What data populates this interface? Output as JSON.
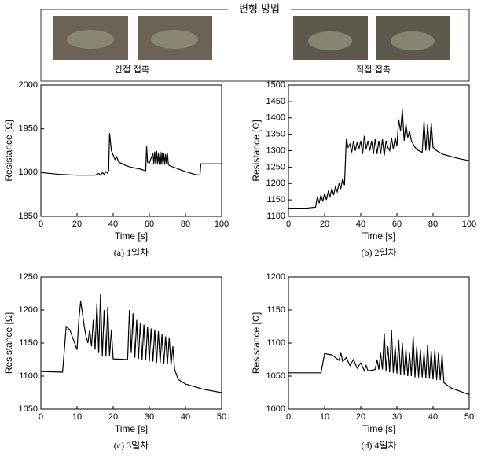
{
  "header": {
    "title": "변형 방법",
    "labels": [
      "간접 접촉",
      "직접 접촉"
    ]
  },
  "chart_data": [
    {
      "type": "line",
      "x_label": "Time [s]",
      "y_label": "Resistance [Ω]",
      "caption": "(a) 1일차",
      "x": [
        0,
        10,
        20,
        30,
        32,
        33,
        34,
        35,
        36,
        37,
        37.5,
        38,
        39,
        40,
        41,
        42,
        43,
        45,
        47,
        50,
        55,
        58,
        58.5,
        59,
        60,
        62,
        62.5,
        63,
        63.5,
        64,
        64.5,
        65,
        65.5,
        66,
        66.5,
        67,
        67.5,
        68,
        68.5,
        69,
        69.5,
        70,
        70.5,
        71,
        75,
        80,
        85,
        88,
        88.5,
        95,
        100
      ],
      "series": [
        {
          "color": "#000000",
          "values": [
            1900,
            1898,
            1897,
            1897,
            1899,
            1897,
            1900,
            1898,
            1901,
            1899,
            1903,
            1945,
            1925,
            1920,
            1915,
            1918,
            1912,
            1910,
            1908,
            1906,
            1904,
            1902,
            1930,
            1912,
            1911,
            1922,
            1910,
            1924,
            1910,
            1925,
            1910,
            1922,
            1909,
            1924,
            1909,
            1923,
            1909,
            1922,
            1909,
            1921,
            1910,
            1922,
            1910,
            1908,
            1905,
            1901,
            1898,
            1897,
            1910,
            1910,
            1910
          ]
        }
      ],
      "xlim": [
        0,
        100
      ],
      "ylim": [
        1850,
        2000
      ],
      "xticks": [
        0,
        20,
        40,
        60,
        80,
        100
      ],
      "yticks": [
        1850,
        1900,
        1950,
        2000
      ]
    },
    {
      "type": "line",
      "x_label": "Time [s]",
      "y_label": "Resistance [Ω]",
      "caption": "(b) 2일차",
      "x": [
        0,
        10,
        15,
        16,
        17,
        18,
        19,
        20,
        21,
        22,
        23,
        24,
        25,
        26,
        27,
        28,
        29,
        30,
        31,
        32,
        33,
        34,
        35,
        36,
        37,
        38,
        39,
        40,
        41,
        42,
        43,
        44,
        45,
        46,
        47,
        48,
        49,
        50,
        51,
        52,
        53,
        54,
        55,
        56,
        57,
        58,
        59,
        60,
        61,
        62,
        63,
        64,
        65,
        66,
        67,
        68,
        70,
        72,
        74,
        75,
        76,
        77,
        78,
        79,
        80,
        82,
        85,
        90,
        95,
        100
      ],
      "series": [
        {
          "color": "#000000",
          "values": [
            1125,
            1125,
            1128,
            1160,
            1140,
            1165,
            1145,
            1170,
            1150,
            1175,
            1160,
            1185,
            1165,
            1190,
            1175,
            1200,
            1185,
            1215,
            1195,
            1335,
            1310,
            1320,
            1295,
            1330,
            1300,
            1325,
            1305,
            1330,
            1290,
            1345,
            1305,
            1330,
            1300,
            1330,
            1290,
            1335,
            1290,
            1330,
            1290,
            1335,
            1285,
            1330,
            1310,
            1300,
            1340,
            1305,
            1340,
            1315,
            1395,
            1360,
            1425,
            1330,
            1380,
            1340,
            1360,
            1330,
            1310,
            1300,
            1295,
            1390,
            1300,
            1380,
            1300,
            1385,
            1310,
            1300,
            1290,
            1282,
            1275,
            1270
          ]
        }
      ],
      "xlim": [
        0,
        100
      ],
      "ylim": [
        1100,
        1500
      ],
      "xticks": [
        0,
        20,
        40,
        60,
        80,
        100
      ],
      "yticks": [
        1100,
        1150,
        1200,
        1250,
        1300,
        1350,
        1400,
        1450,
        1500
      ]
    },
    {
      "type": "line",
      "x_label": "Time [s]",
      "y_label": "Resistance [Ω]",
      "caption": "(c) 3일차",
      "x": [
        0,
        6,
        6.5,
        7,
        8,
        9,
        10,
        10.5,
        11,
        11.5,
        12,
        12.5,
        13,
        13.5,
        14,
        14.5,
        15,
        15.5,
        16,
        16.5,
        17,
        17.5,
        18,
        18.5,
        19,
        19.5,
        20,
        24,
        24.5,
        25,
        25.5,
        26,
        26.5,
        27,
        27.5,
        28,
        28.5,
        29,
        29.5,
        30,
        30.5,
        31,
        31.5,
        32,
        32.5,
        33,
        33.5,
        34,
        34.5,
        35,
        35.5,
        36,
        36.5,
        37,
        38,
        40,
        45,
        50
      ],
      "series": [
        {
          "color": "#000000",
          "values": [
            1107,
            1106,
            1140,
            1175,
            1170,
            1155,
            1140,
            1185,
            1213,
            1195,
            1175,
            1160,
            1150,
            1170,
            1145,
            1185,
            1140,
            1210,
            1135,
            1224,
            1130,
            1200,
            1130,
            1205,
            1130,
            1170,
            1126,
            1125,
            1200,
            1135,
            1195,
            1128,
            1185,
            1126,
            1180,
            1125,
            1178,
            1124,
            1175,
            1122,
            1172,
            1122,
            1170,
            1120,
            1168,
            1120,
            1163,
            1118,
            1160,
            1118,
            1158,
            1117,
            1145,
            1110,
            1095,
            1088,
            1080,
            1075
          ]
        }
      ],
      "xlim": [
        0,
        50
      ],
      "ylim": [
        1050,
        1250
      ],
      "xticks": [
        0,
        10,
        20,
        30,
        40,
        50
      ],
      "yticks": [
        1050,
        1100,
        1150,
        1200,
        1250
      ]
    },
    {
      "type": "line",
      "x_label": "Time [s]",
      "y_label": "Resistance [Ω]",
      "caption": "(d) 4일차",
      "x": [
        0,
        9,
        10,
        12,
        13,
        14,
        14.5,
        15,
        16,
        17,
        18,
        19,
        20,
        21,
        21.5,
        22,
        24,
        24.5,
        25,
        25.5,
        26,
        26.5,
        27,
        27.5,
        28,
        28.5,
        29,
        29.5,
        30,
        30.5,
        31,
        31.5,
        32,
        32.5,
        33,
        33.5,
        34,
        34.5,
        35,
        35.5,
        36,
        36.5,
        37,
        37.5,
        38,
        38.5,
        39,
        39.5,
        40,
        40.5,
        41,
        41.5,
        42,
        42.5,
        43,
        45,
        50
      ],
      "series": [
        {
          "color": "#000000",
          "values": [
            1055,
            1055,
            1084,
            1082,
            1078,
            1074,
            1085,
            1072,
            1078,
            1066,
            1075,
            1062,
            1070,
            1058,
            1066,
            1058,
            1060,
            1075,
            1060,
            1085,
            1060,
            1115,
            1058,
            1095,
            1056,
            1120,
            1055,
            1095,
            1054,
            1105,
            1052,
            1100,
            1052,
            1090,
            1050,
            1085,
            1050,
            1110,
            1048,
            1095,
            1048,
            1090,
            1048,
            1085,
            1047,
            1098,
            1046,
            1088,
            1045,
            1090,
            1044,
            1085,
            1044,
            1083,
            1040,
            1032,
            1022
          ]
        }
      ],
      "xlim": [
        0,
        50
      ],
      "ylim": [
        1000,
        1200
      ],
      "xticks": [
        0,
        10,
        20,
        30,
        40,
        50
      ],
      "yticks": [
        1000,
        1050,
        1100,
        1150,
        1200
      ]
    }
  ]
}
